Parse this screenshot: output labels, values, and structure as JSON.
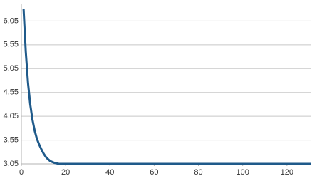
{
  "chart_data": {
    "type": "line",
    "x": [
      1,
      2,
      3,
      4,
      5,
      6,
      7,
      8,
      9,
      10,
      11,
      12,
      13,
      14,
      15,
      16,
      17,
      40,
      80,
      131
    ],
    "series": [
      {
        "color": "#1f5a8a",
        "values": [
          6.3,
          5.4,
          4.75,
          4.3,
          3.98,
          3.75,
          3.58,
          3.46,
          3.36,
          3.27,
          3.2,
          3.15,
          3.11,
          3.09,
          3.07,
          3.06,
          3.05,
          3.05,
          3.05,
          3.05
        ]
      }
    ],
    "xlim": [
      0,
      131
    ],
    "xticks": [
      0,
      20,
      40,
      60,
      80,
      100,
      120
    ],
    "ylim": [
      3.05,
      6.4
    ],
    "yticks": [
      3.05,
      3.55,
      4.05,
      4.55,
      5.05,
      5.55,
      6.05
    ],
    "grid": true
  }
}
